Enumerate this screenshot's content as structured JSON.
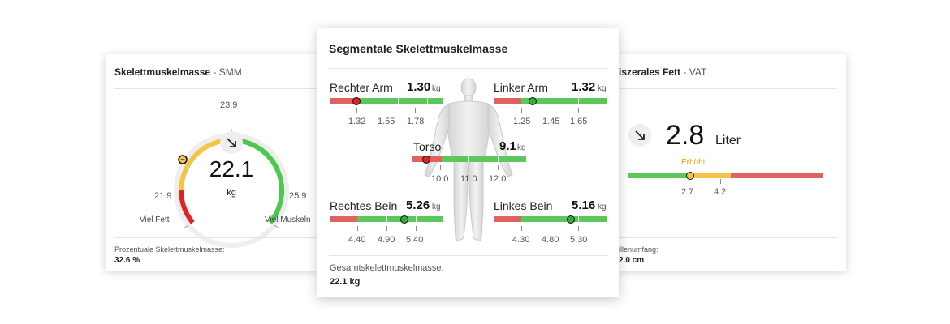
{
  "smm": {
    "title": "Skelettmuskelmasse",
    "subtitle": " - SMM",
    "value": "22.1",
    "unit": "kg",
    "trend_icon": "arrow-down-right-icon",
    "scale_top": "23.9",
    "scale_left": "21.9",
    "scale_right": "25.9",
    "label_left": "Viel Fett",
    "label_right": "Viel Muskeln",
    "footer_label": "Prozentuale Skelettmuskelmasse:",
    "footer_value": "32.6 %",
    "colors": {
      "red": "#e02424",
      "yellow": "#f5c347",
      "green": "#4cc94c"
    }
  },
  "segmental": {
    "title": "Segmentale Skelettmuskelmasse",
    "unit": "kg",
    "right_arm": {
      "label": "Rechter Arm",
      "value": "1.30",
      "ticks": [
        "1.32",
        "1.55",
        "1.78"
      ]
    },
    "left_arm": {
      "label": "Linker Arm",
      "value": "1.32",
      "ticks": [
        "1.25",
        "1.45",
        "1.65"
      ]
    },
    "torso": {
      "label": "Torso",
      "value": "9.1",
      "ticks": [
        "10.0",
        "11.0",
        "12.0"
      ]
    },
    "right_leg": {
      "label": "Rechtes Bein",
      "value": "5.26",
      "ticks": [
        "4.40",
        "4.90",
        "5.40"
      ]
    },
    "left_leg": {
      "label": "Linkes Bein",
      "value": "5.16",
      "ticks": [
        "4.30",
        "4.80",
        "5.30"
      ]
    },
    "footer_label": "Gesamtskelettmuskelmasse:",
    "footer_value": "22.1 kg"
  },
  "vat": {
    "title": "iszerales Fett",
    "subtitle": " - VAT",
    "value": "2.8",
    "unit": "Liter",
    "status": "Erhöht",
    "ticks": [
      "2.7",
      "4.2"
    ],
    "footer_label": "illenumfang:",
    "footer_value": "2.0 cm",
    "trend_icon": "arrow-down-right-icon"
  }
}
